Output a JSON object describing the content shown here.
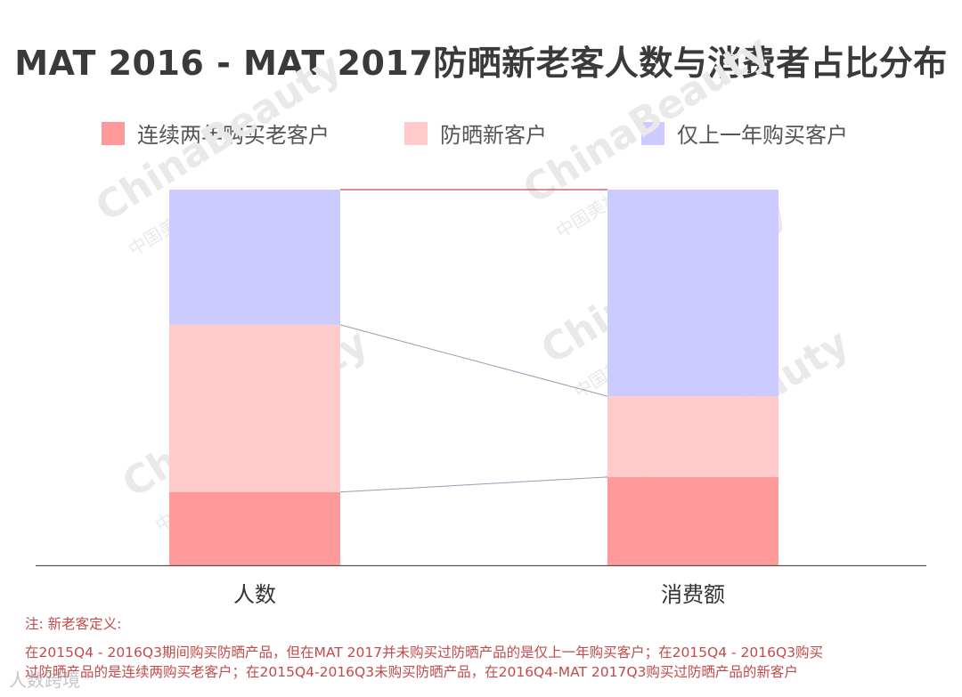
{
  "colors": {
    "old_customers": "#ff9a9a",
    "new_customers": "#ffcaca",
    "last_year_only": "#cbcbff",
    "axis": "#555555",
    "connector_top": "#c94a4a",
    "connector": "#9a9ab4",
    "watermark": "#e9e9e9"
  },
  "watermark": {
    "brand": "ChinaBeauty",
    "sub": "中国美妆"
  },
  "footer_stamp": "人数跨境",
  "notes": {
    "heading": "注:  新老客定义:",
    "line1": "在2015Q4 - 2016Q3期间购买防晒产品，但在MAT 2017并未购买过防晒产品的是仅上一年购买客户；在2015Q4 - 2016Q3购买",
    "line2": "过防晒产品的是连续两购买老客户；在2015Q4-2016Q3未购买防晒产品，在2016Q4-MAT 2017Q3购买过防晒产品的新客户"
  },
  "chart_data": {
    "type": "bar",
    "stacked": true,
    "percent": true,
    "title": "MAT 2016 - MAT 2017防晒新老客人数与消费者占比分布",
    "categories": [
      "人数",
      "消费额"
    ],
    "series": [
      {
        "name": "连续两年购买老客户",
        "color": "#ff9a9a",
        "values": [
          19.5,
          23.5
        ]
      },
      {
        "name": "防晒新客户",
        "color": "#ffcaca",
        "values": [
          44.5,
          21.5
        ]
      },
      {
        "name": "仅上一年购买客户",
        "color": "#cbcbff",
        "values": [
          36,
          55
        ]
      }
    ],
    "ylim": [
      0,
      100
    ],
    "legend_position": "top",
    "grid": false
  }
}
